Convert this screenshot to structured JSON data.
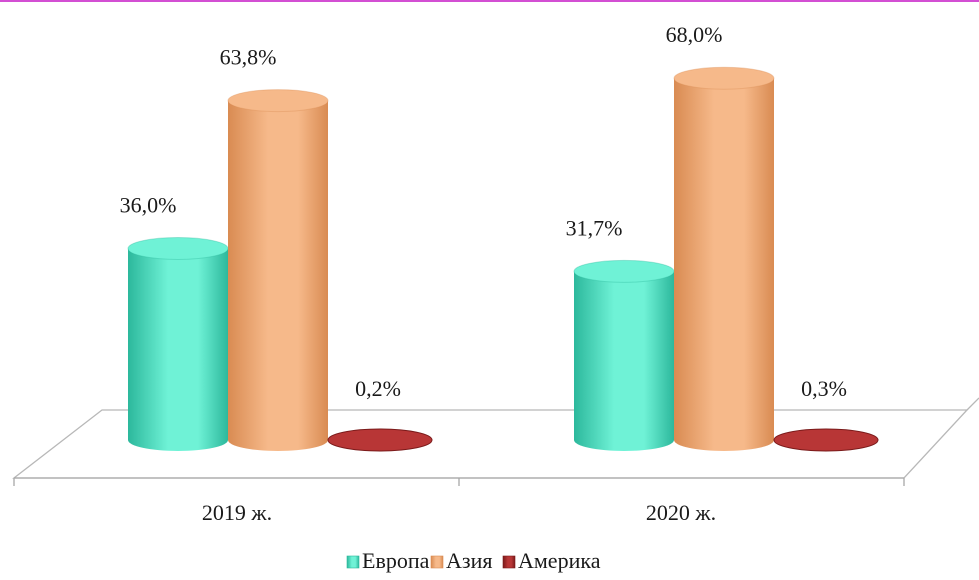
{
  "chart_data": {
    "type": "bar",
    "title": "",
    "xlabel": "",
    "ylabel": "",
    "categories": [
      "2019 ж.",
      "2020 ж."
    ],
    "series": [
      {
        "name": "Европа",
        "values": [
          36.0,
          31.7
        ],
        "labels": [
          "36,0%",
          "31,7%"
        ],
        "color": "#6ff2d6",
        "dark": "#2cb89c"
      },
      {
        "name": "Азия",
        "values": [
          63.8,
          68.0
        ],
        "labels": [
          "63,8%",
          "68,0%"
        ],
        "color": "#f6b98a",
        "dark": "#d98b52"
      },
      {
        "name": "Америка",
        "values": [
          0.2,
          0.3
        ],
        "labels": [
          "0,2%",
          "0,3%"
        ],
        "color": "#b83636",
        "dark": "#7a1a1a"
      }
    ],
    "ylim": [
      0,
      75
    ],
    "grid": false,
    "legend_position": "bottom",
    "style": "3d-cylinder"
  },
  "frame": {
    "top_border_color": "#d34fd3"
  }
}
